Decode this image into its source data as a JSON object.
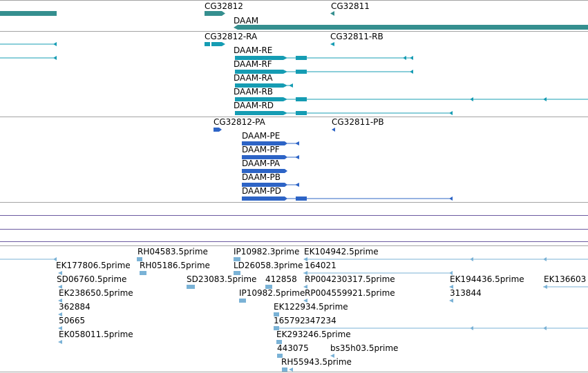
{
  "colors": {
    "gene": "#358f8f",
    "transcript": "#159cb3",
    "protein": "#2d64c6",
    "est": "#7ab2d6",
    "divider": "#a3a3a3",
    "purple_divider": "#6b5aa0"
  },
  "genes": {
    "cg32812": "CG32812",
    "cg32811": "CG32811",
    "daam": "DAAM"
  },
  "transcripts": {
    "cg32812_ra": "CG32812-RA",
    "cg32811_rb": "CG32811-RB",
    "daam_re": "DAAM-RE",
    "daam_rf": "DAAM-RF",
    "daam_ra": "DAAM-RA",
    "daam_rb": "DAAM-RB",
    "daam_rd": "DAAM-RD"
  },
  "proteins": {
    "cg32812_pa": "CG32812-PA",
    "cg32811_pb": "CG32811-PB",
    "daam_pe": "DAAM-PE",
    "daam_pf": "DAAM-PF",
    "daam_pa": "DAAM-PA",
    "daam_pb": "DAAM-PB",
    "daam_pd": "DAAM-PD"
  },
  "ests": {
    "rh04583": "RH04583.5prime",
    "ip10982_3": "IP10982.3prime",
    "ek104942": "EK104942.5prime",
    "ek177806": "EK177806.5prime",
    "rh05186": "RH05186.5prime",
    "ld26058": "LD26058.3prime",
    "n164021": "164021",
    "sd06760": "SD06760.5prime",
    "sd23083": "SD23083.5prime",
    "n412858": "412858",
    "rp004230317": "RP004230317.5prime",
    "ek194436": "EK194436.5prime",
    "ek136603": "EK136603",
    "ek238650": "EK238650.5prime",
    "ip10982_5": "IP10982.5prime",
    "rp004559921": "RP004559921.5prime",
    "n313844": "313844",
    "n362884": "362884",
    "ek122934": "EK122934.5prime",
    "n50665": "50665",
    "n165792": "165792",
    "n347234": "347234",
    "ek058011": "EK058011.5prime",
    "ek293246": "EK293246.5prime",
    "n443075": "443075",
    "bs35h03": "bs35h03.5prime",
    "rh55943": "RH55943.5prime"
  }
}
